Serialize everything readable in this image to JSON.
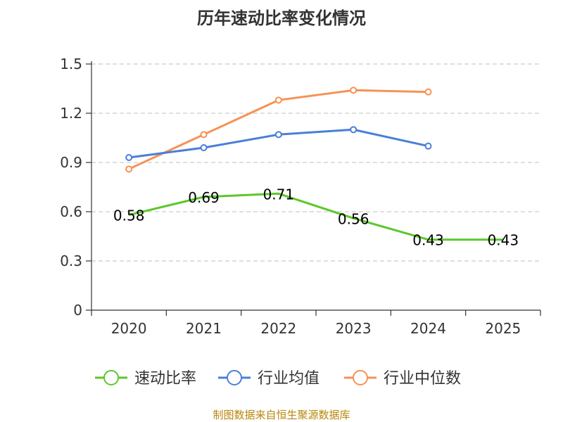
{
  "chart_data": {
    "type": "line",
    "title": "历年速动比率变化情况",
    "categories": [
      "2020",
      "2021",
      "2022",
      "2023",
      "2024",
      "2025"
    ],
    "y_ticks": [
      "0",
      "0.3",
      "0.6",
      "0.9",
      "1.2",
      "1.5"
    ],
    "ylim": [
      0,
      1.5
    ],
    "grid": true,
    "legend_position": "bottom",
    "series": [
      {
        "name": "速动比率",
        "color": "#5cc72a",
        "values": [
          0.58,
          0.69,
          0.71,
          0.56,
          0.43,
          0.43
        ],
        "labels": [
          "0.58",
          "0.69",
          "0.71",
          "0.56",
          "0.43",
          "0.43"
        ],
        "show_markers": false
      },
      {
        "name": "行业均值",
        "color": "#4a7fd8",
        "values": [
          0.93,
          0.99,
          1.07,
          1.1,
          1.0,
          null
        ],
        "show_markers": true
      },
      {
        "name": "行业中位数",
        "color": "#f79154",
        "values": [
          0.86,
          1.07,
          1.28,
          1.34,
          1.33,
          null
        ],
        "show_markers": true
      }
    ],
    "source": "制图数据来自恒生聚源数据库",
    "source_color": "#b8860b"
  }
}
